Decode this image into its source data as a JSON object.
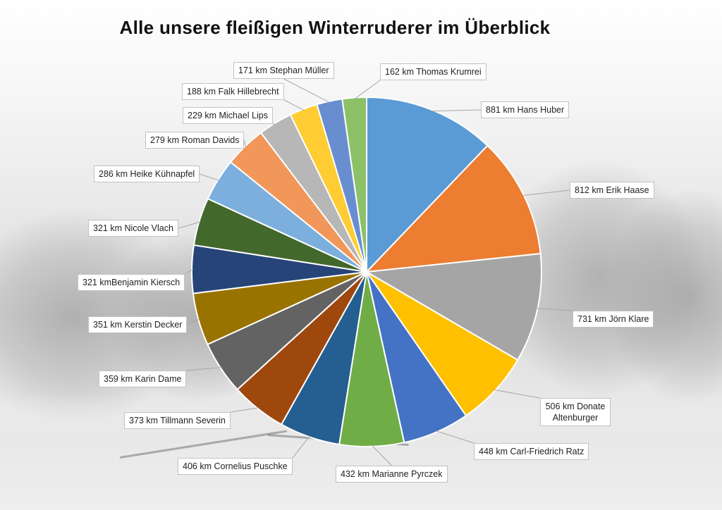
{
  "title": "Alle unsere fleißigen Winterruderer im Überblick",
  "chart_data": {
    "type": "pie",
    "title": "Alle unsere fleißigen Winterruderer im Überblick",
    "unit": "km",
    "slices": [
      {
        "label": "881 km Hans  Huber",
        "name": "Hans  Huber",
        "value": 881,
        "color": "#5B9BD5"
      },
      {
        "label": "812 km Erik Haase",
        "name": "Erik Haase",
        "value": 812,
        "color": "#ED7D31"
      },
      {
        "label": "731 km Jörn Klare",
        "name": "Jörn Klare",
        "value": 731,
        "color": "#A5A5A5"
      },
      {
        "label": "506 km Donate Altenburger",
        "name": "Donate Altenburger",
        "value": 506,
        "color": "#FFC000"
      },
      {
        "label": "448 km Carl-Friedrich Ratz",
        "name": "Carl-Friedrich Ratz",
        "value": 448,
        "color": "#4472C4"
      },
      {
        "label": "432 km Marianne Pyrczek",
        "name": "Marianne Pyrczek",
        "value": 432,
        "color": "#70AD47"
      },
      {
        "label": "406 km Cornelius Puschke",
        "name": "Cornelius Puschke",
        "value": 406,
        "color": "#255E91"
      },
      {
        "label": "373 km Tillmann Severin",
        "name": "Tillmann Severin",
        "value": 373,
        "color": "#9E480E"
      },
      {
        "label": "359 km Karin Dame",
        "name": "Karin Dame",
        "value": 359,
        "color": "#636363"
      },
      {
        "label": "351 km Kerstin Decker",
        "name": "Kerstin Decker",
        "value": 351,
        "color": "#997300"
      },
      {
        "label": "321 kmBenjamin Kiersch",
        "name": "Benjamin Kiersch",
        "value": 321,
        "color": "#264478"
      },
      {
        "label": "321 km Nicole Vlach",
        "name": "Nicole Vlach",
        "value": 321,
        "color": "#43682B"
      },
      {
        "label": "286 km Heike Kühnapfel",
        "name": "Heike Kühnapfel",
        "value": 286,
        "color": "#7CAFDD"
      },
      {
        "label": "279 km Roman Davids",
        "name": "Roman Davids",
        "value": 279,
        "color": "#F1975A"
      },
      {
        "label": "229 km Michael Lips",
        "name": "Michael Lips",
        "value": 229,
        "color": "#B7B7B7"
      },
      {
        "label": "188 km Falk Hillebrecht",
        "name": "Falk Hillebrecht",
        "value": 188,
        "color": "#FFCD33"
      },
      {
        "label": "171 km Stephan Müller",
        "name": "Stephan Müller",
        "value": 171,
        "color": "#698ED0"
      },
      {
        "label": "162 km Thomas Krumrei",
        "name": "Thomas Krumrei",
        "value": 162,
        "color": "#8CC168"
      }
    ],
    "start_angle_deg": 0,
    "direction": "clockwise",
    "legend": "none",
    "data_labels": "outside-with-leader-lines"
  }
}
